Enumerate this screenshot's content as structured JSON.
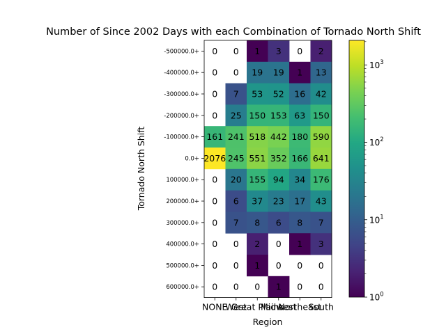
{
  "chart_data": {
    "type": "heatmap",
    "title": "Number of Since 2002 Days with each Combination of Tornado North Shift",
    "xlabel": "Region",
    "ylabel": "Tornado North Shift",
    "x_categories": [
      "NONE",
      "West",
      "Great Plains",
      "Midwest",
      "Northeast",
      "South"
    ],
    "y_categories": [
      "-500000.0+",
      "-400000.0+",
      "-300000.0+",
      "-200000.0+",
      "-100000.0+",
      "0.0+",
      "100000.0+",
      "200000.0+",
      "300000.0+",
      "400000.0+",
      "500000.0+",
      "600000.0+"
    ],
    "values": [
      [
        0,
        0,
        1,
        3,
        0,
        2
      ],
      [
        0,
        0,
        19,
        19,
        1,
        13
      ],
      [
        0,
        7,
        53,
        52,
        16,
        42
      ],
      [
        0,
        25,
        150,
        153,
        63,
        150
      ],
      [
        161,
        241,
        518,
        442,
        180,
        590
      ],
      [
        2076,
        245,
        551,
        352,
        166,
        641
      ],
      [
        0,
        20,
        155,
        94,
        34,
        176
      ],
      [
        0,
        6,
        37,
        23,
        17,
        43
      ],
      [
        0,
        7,
        8,
        6,
        8,
        7
      ],
      [
        0,
        0,
        2,
        0,
        1,
        3
      ],
      [
        0,
        0,
        1,
        0,
        0,
        0
      ],
      [
        0,
        0,
        0,
        1,
        0,
        0
      ]
    ],
    "colorscale": "viridis",
    "color_scale_type": "log",
    "zero_cells": "white (not colored)",
    "colorbar": {
      "range": [
        1,
        2076
      ],
      "ticks": [
        {
          "value": 1,
          "base": "10",
          "exp": "0"
        },
        {
          "value": 10,
          "base": "10",
          "exp": "1"
        },
        {
          "value": 100,
          "base": "10",
          "exp": "2"
        },
        {
          "value": 1000,
          "base": "10",
          "exp": "3"
        }
      ]
    }
  }
}
